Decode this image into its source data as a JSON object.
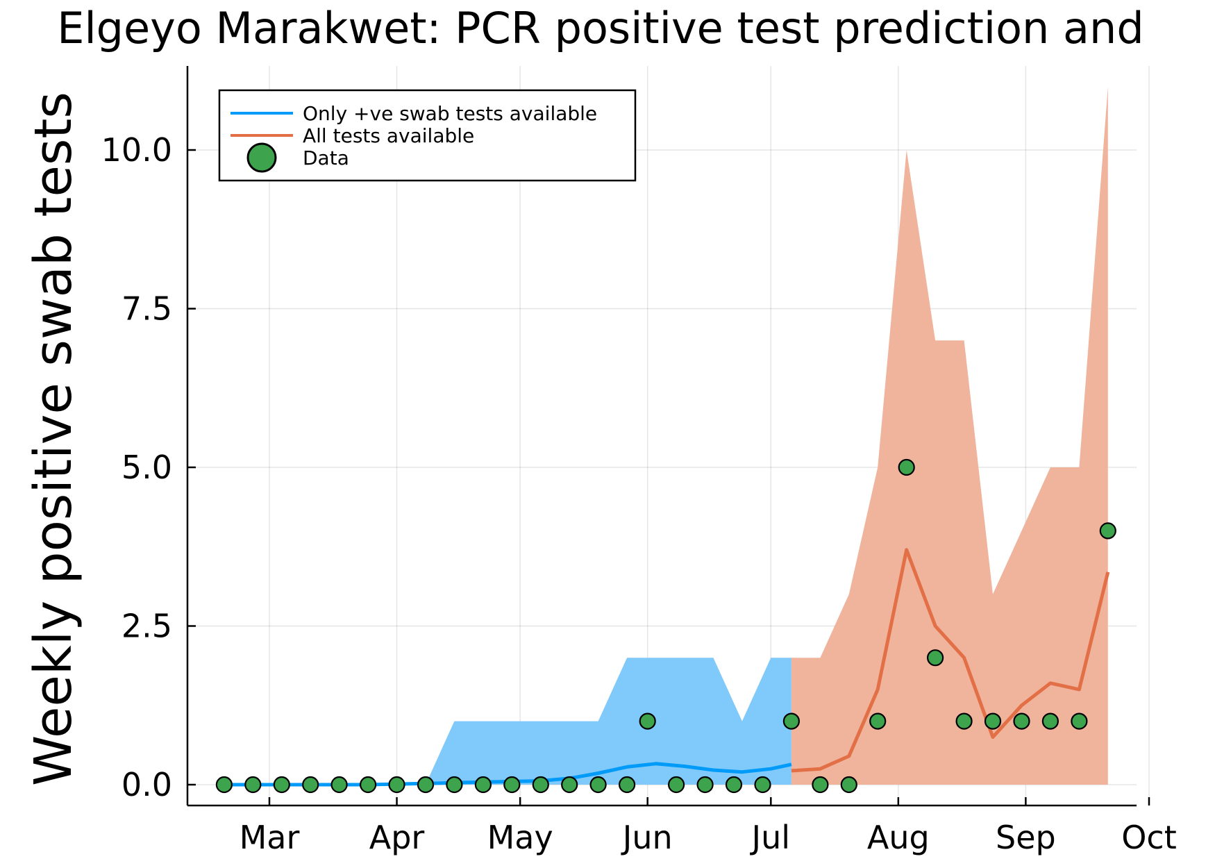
{
  "chart_data": {
    "type": "line",
    "title": "Elgeyo Marakwet: PCR positive test prediction and",
    "xlabel": "",
    "ylabel": "Weekly positive swab tests",
    "ylim": [
      0,
      11
    ],
    "xlim": [
      "2020-02-16",
      "2020-10-04"
    ],
    "grid": true,
    "legend_position": "top-left",
    "x_ticks": [
      {
        "date": "2020-03-01",
        "label": "Mar"
      },
      {
        "date": "2020-04-01",
        "label": "Apr"
      },
      {
        "date": "2020-05-01",
        "label": "May"
      },
      {
        "date": "2020-06-01",
        "label": "Jun"
      },
      {
        "date": "2020-07-01",
        "label": "Jul"
      },
      {
        "date": "2020-08-01",
        "label": "Aug"
      },
      {
        "date": "2020-09-01",
        "label": "Sep"
      },
      {
        "date": "2020-10-01",
        "label": "Oct"
      }
    ],
    "y_ticks": [
      {
        "value": 0,
        "label": "0.0"
      },
      {
        "value": 2.5,
        "label": "2.5"
      },
      {
        "value": 5,
        "label": "5.0"
      },
      {
        "value": 7.5,
        "label": "7.5"
      },
      {
        "value": 10,
        "label": "10.0"
      }
    ],
    "series": [
      {
        "name": "Only +ve swab tests available",
        "color": "#009af9",
        "band_color": "#80c9fb",
        "x": [
          "2020-02-19",
          "2020-02-26",
          "2020-03-04",
          "2020-03-11",
          "2020-03-18",
          "2020-03-25",
          "2020-04-01",
          "2020-04-08",
          "2020-04-15",
          "2020-04-22",
          "2020-04-29",
          "2020-05-06",
          "2020-05-13",
          "2020-05-20",
          "2020-05-27",
          "2020-06-03",
          "2020-06-10",
          "2020-06-17",
          "2020-06-24",
          "2020-07-01",
          "2020-07-06"
        ],
        "values": [
          0,
          0,
          0,
          0,
          0,
          0,
          0.01,
          0.02,
          0.03,
          0.04,
          0.05,
          0.06,
          0.1,
          0.18,
          0.28,
          0.33,
          0.29,
          0.23,
          0.2,
          0.25,
          0.32
        ],
        "upper": [
          0,
          0,
          0,
          0,
          0,
          0,
          0,
          0,
          1,
          1,
          1,
          1,
          1,
          1,
          2,
          2,
          2,
          2,
          1,
          2,
          2
        ],
        "lower": [
          0,
          0,
          0,
          0,
          0,
          0,
          0,
          0,
          0,
          0,
          0,
          0,
          0,
          0,
          0,
          0,
          0,
          0,
          0,
          0,
          0
        ]
      },
      {
        "name": "All tests available",
        "color": "#e26f46",
        "band_color": "#f0b39c",
        "x": [
          "2020-07-06",
          "2020-07-13",
          "2020-07-20",
          "2020-07-27",
          "2020-08-03",
          "2020-08-10",
          "2020-08-17",
          "2020-08-24",
          "2020-08-31",
          "2020-09-07",
          "2020-09-14",
          "2020-09-21"
        ],
        "values": [
          0.22,
          0.25,
          0.45,
          1.5,
          3.7,
          2.5,
          2.0,
          0.75,
          1.25,
          1.6,
          1.5,
          3.35
        ],
        "upper": [
          2,
          2,
          3,
          5,
          10,
          7,
          7,
          3,
          4,
          5,
          5,
          11
        ],
        "lower": [
          0,
          0,
          0,
          0,
          0,
          0,
          0,
          0,
          0,
          0,
          0,
          0
        ]
      },
      {
        "name": "Data",
        "color": "#3da44d",
        "type": "scatter",
        "x": [
          "2020-02-19",
          "2020-02-26",
          "2020-03-04",
          "2020-03-11",
          "2020-03-18",
          "2020-03-25",
          "2020-04-01",
          "2020-04-08",
          "2020-04-15",
          "2020-04-22",
          "2020-04-29",
          "2020-05-06",
          "2020-05-13",
          "2020-05-20",
          "2020-05-27",
          "2020-06-01",
          "2020-06-08",
          "2020-06-15",
          "2020-06-22",
          "2020-06-29",
          "2020-07-06",
          "2020-07-13",
          "2020-07-20",
          "2020-07-27",
          "2020-08-03",
          "2020-08-10",
          "2020-08-17",
          "2020-08-24",
          "2020-08-31",
          "2020-09-07",
          "2020-09-14",
          "2020-09-21"
        ],
        "values": [
          0,
          0,
          0,
          0,
          0,
          0,
          0,
          0,
          0,
          0,
          0,
          0,
          0,
          0,
          0,
          1,
          0,
          0,
          0,
          0,
          1,
          0,
          0,
          1,
          5,
          2,
          1,
          1,
          1,
          1,
          1,
          4
        ]
      }
    ]
  }
}
